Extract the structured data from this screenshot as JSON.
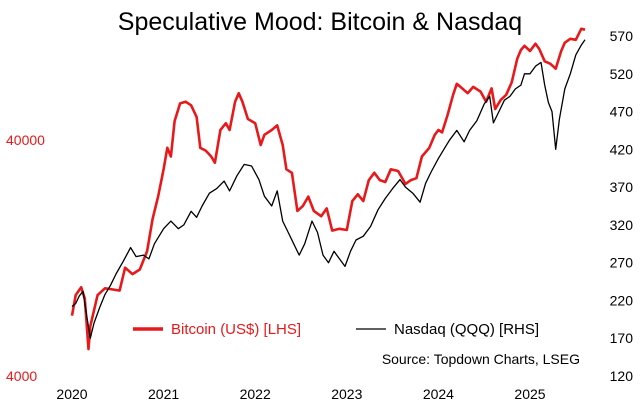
{
  "chart_data": {
    "type": "line",
    "title": "Speculative Mood: Bitcoin & Nasdaq",
    "source": "Source: Topdown Charts, LSEG",
    "x_ticks": [
      "2020",
      "2021",
      "2022",
      "2023",
      "2024",
      "2025"
    ],
    "x_tick_values": [
      2020,
      2021,
      2022,
      2023,
      2024,
      2025
    ],
    "xlim": [
      2020,
      2025.6
    ],
    "left_axis": {
      "scale": "log",
      "ticks": [
        "4000",
        "40000"
      ],
      "tick_values": [
        4000,
        40000
      ],
      "ylim": [
        4000,
        110000
      ],
      "color": "#e8191b"
    },
    "right_axis": {
      "scale": "linear",
      "ticks": [
        "120",
        "170",
        "220",
        "270",
        "320",
        "370",
        "420",
        "470",
        "520",
        "570"
      ],
      "tick_values": [
        120,
        170,
        220,
        270,
        320,
        370,
        420,
        470,
        520,
        570
      ],
      "ylim": [
        120,
        570
      ],
      "color": "#000000"
    },
    "series": [
      {
        "name": "Bitcoin (US$) [LHS]",
        "axis": "left",
        "color": "#e8191b",
        "points": [
          [
            2020.0,
            7200
          ],
          [
            2020.04,
            8800
          ],
          [
            2020.1,
            9500
          ],
          [
            2020.14,
            8500
          ],
          [
            2020.18,
            5200
          ],
          [
            2020.2,
            6500
          ],
          [
            2020.28,
            8800
          ],
          [
            2020.36,
            9400
          ],
          [
            2020.44,
            9300
          ],
          [
            2020.52,
            9200
          ],
          [
            2020.58,
            11500
          ],
          [
            2020.66,
            10800
          ],
          [
            2020.74,
            11300
          ],
          [
            2020.82,
            13500
          ],
          [
            2020.88,
            18500
          ],
          [
            2020.94,
            23000
          ],
          [
            2021.0,
            30000
          ],
          [
            2021.04,
            37000
          ],
          [
            2021.08,
            34000
          ],
          [
            2021.12,
            48000
          ],
          [
            2021.18,
            57000
          ],
          [
            2021.24,
            58000
          ],
          [
            2021.3,
            56000
          ],
          [
            2021.36,
            50000
          ],
          [
            2021.4,
            37000
          ],
          [
            2021.46,
            36000
          ],
          [
            2021.52,
            34000
          ],
          [
            2021.56,
            32000
          ],
          [
            2021.62,
            44000
          ],
          [
            2021.68,
            47000
          ],
          [
            2021.72,
            44000
          ],
          [
            2021.78,
            58000
          ],
          [
            2021.82,
            63000
          ],
          [
            2021.86,
            58000
          ],
          [
            2021.92,
            49000
          ],
          [
            2022.0,
            47000
          ],
          [
            2022.06,
            38000
          ],
          [
            2022.1,
            42000
          ],
          [
            2022.18,
            44000
          ],
          [
            2022.24,
            46000
          ],
          [
            2022.3,
            38000
          ],
          [
            2022.34,
            30000
          ],
          [
            2022.4,
            29000
          ],
          [
            2022.46,
            20000
          ],
          [
            2022.52,
            21000
          ],
          [
            2022.58,
            23000
          ],
          [
            2022.64,
            20000
          ],
          [
            2022.72,
            19000
          ],
          [
            2022.78,
            20500
          ],
          [
            2022.84,
            16500
          ],
          [
            2022.92,
            16800
          ],
          [
            2023.0,
            16600
          ],
          [
            2023.06,
            22000
          ],
          [
            2023.12,
            23500
          ],
          [
            2023.18,
            22000
          ],
          [
            2023.24,
            27000
          ],
          [
            2023.3,
            29000
          ],
          [
            2023.36,
            27000
          ],
          [
            2023.42,
            26500
          ],
          [
            2023.48,
            30000
          ],
          [
            2023.56,
            29500
          ],
          [
            2023.64,
            26000
          ],
          [
            2023.7,
            27000
          ],
          [
            2023.76,
            27500
          ],
          [
            2023.82,
            34000
          ],
          [
            2023.9,
            37000
          ],
          [
            2023.96,
            42000
          ],
          [
            2024.0,
            44000
          ],
          [
            2024.04,
            43000
          ],
          [
            2024.1,
            51000
          ],
          [
            2024.16,
            62000
          ],
          [
            2024.2,
            69000
          ],
          [
            2024.26,
            66000
          ],
          [
            2024.32,
            63000
          ],
          [
            2024.38,
            67000
          ],
          [
            2024.46,
            64000
          ],
          [
            2024.52,
            58000
          ],
          [
            2024.58,
            66000
          ],
          [
            2024.62,
            54000
          ],
          [
            2024.68,
            59000
          ],
          [
            2024.74,
            62000
          ],
          [
            2024.8,
            70000
          ],
          [
            2024.86,
            88000
          ],
          [
            2024.9,
            96000
          ],
          [
            2024.94,
            100000
          ],
          [
            2025.0,
            95000
          ],
          [
            2025.06,
            102000
          ],
          [
            2025.1,
            97000
          ],
          [
            2025.16,
            86000
          ],
          [
            2025.22,
            84000
          ],
          [
            2025.28,
            80000
          ],
          [
            2025.34,
            95000
          ],
          [
            2025.38,
            103000
          ],
          [
            2025.44,
            107000
          ],
          [
            2025.5,
            106000
          ],
          [
            2025.56,
            118000
          ],
          [
            2025.6,
            117000
          ]
        ]
      },
      {
        "name": "Nasdaq (QQQ) [RHS]",
        "axis": "right",
        "color": "#000000",
        "points": [
          [
            2020.0,
            212
          ],
          [
            2020.04,
            216
          ],
          [
            2020.08,
            226
          ],
          [
            2020.12,
            232
          ],
          [
            2020.16,
            200
          ],
          [
            2020.2,
            170
          ],
          [
            2020.24,
            190
          ],
          [
            2020.3,
            210
          ],
          [
            2020.36,
            228
          ],
          [
            2020.42,
            240
          ],
          [
            2020.48,
            255
          ],
          [
            2020.56,
            272
          ],
          [
            2020.64,
            290
          ],
          [
            2020.7,
            278
          ],
          [
            2020.78,
            280
          ],
          [
            2020.84,
            275
          ],
          [
            2020.9,
            295
          ],
          [
            2021.0,
            315
          ],
          [
            2021.08,
            325
          ],
          [
            2021.16,
            315
          ],
          [
            2021.22,
            320
          ],
          [
            2021.3,
            338
          ],
          [
            2021.36,
            330
          ],
          [
            2021.42,
            345
          ],
          [
            2021.5,
            362
          ],
          [
            2021.58,
            368
          ],
          [
            2021.66,
            378
          ],
          [
            2021.72,
            365
          ],
          [
            2021.8,
            385
          ],
          [
            2021.88,
            400
          ],
          [
            2021.96,
            398
          ],
          [
            2022.04,
            380
          ],
          [
            2022.1,
            358
          ],
          [
            2022.18,
            345
          ],
          [
            2022.24,
            365
          ],
          [
            2022.3,
            325
          ],
          [
            2022.36,
            310
          ],
          [
            2022.42,
            295
          ],
          [
            2022.48,
            280
          ],
          [
            2022.54,
            295
          ],
          [
            2022.62,
            325
          ],
          [
            2022.68,
            310
          ],
          [
            2022.74,
            280
          ],
          [
            2022.8,
            270
          ],
          [
            2022.86,
            285
          ],
          [
            2022.92,
            275
          ],
          [
            2022.98,
            265
          ],
          [
            2023.04,
            285
          ],
          [
            2023.1,
            300
          ],
          [
            2023.18,
            305
          ],
          [
            2023.26,
            318
          ],
          [
            2023.34,
            340
          ],
          [
            2023.42,
            355
          ],
          [
            2023.5,
            368
          ],
          [
            2023.58,
            380
          ],
          [
            2023.64,
            370
          ],
          [
            2023.72,
            362
          ],
          [
            2023.8,
            350
          ],
          [
            2023.86,
            375
          ],
          [
            2023.92,
            390
          ],
          [
            2024.0,
            408
          ],
          [
            2024.06,
            420
          ],
          [
            2024.12,
            432
          ],
          [
            2024.2,
            445
          ],
          [
            2024.28,
            430
          ],
          [
            2024.34,
            445
          ],
          [
            2024.42,
            458
          ],
          [
            2024.5,
            480
          ],
          [
            2024.56,
            490
          ],
          [
            2024.6,
            455
          ],
          [
            2024.66,
            470
          ],
          [
            2024.72,
            485
          ],
          [
            2024.78,
            490
          ],
          [
            2024.84,
            500
          ],
          [
            2024.9,
            505
          ],
          [
            2024.94,
            520
          ],
          [
            2025.0,
            520
          ],
          [
            2025.06,
            530
          ],
          [
            2025.12,
            535
          ],
          [
            2025.16,
            505
          ],
          [
            2025.2,
            482
          ],
          [
            2025.24,
            470
          ],
          [
            2025.28,
            420
          ],
          [
            2025.32,
            460
          ],
          [
            2025.38,
            500
          ],
          [
            2025.44,
            520
          ],
          [
            2025.5,
            545
          ],
          [
            2025.56,
            558
          ],
          [
            2025.6,
            565
          ]
        ]
      }
    ]
  }
}
